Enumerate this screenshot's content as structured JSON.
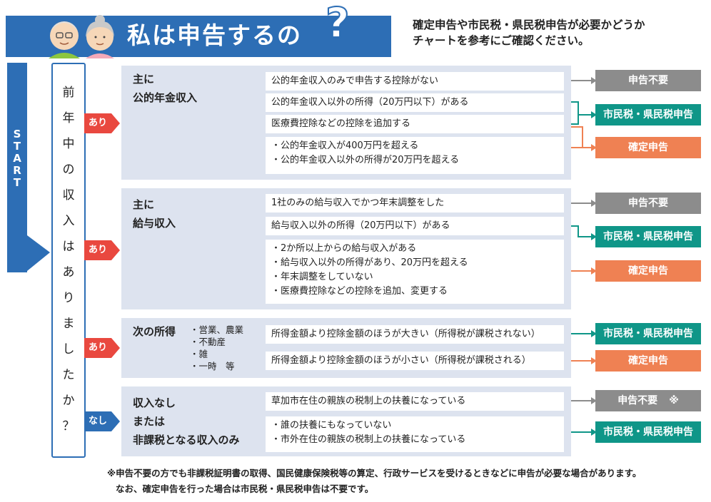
{
  "header": {
    "title": "私は申告するの",
    "title_mark": "?",
    "note_line1": "確定申告や市民税・県民税申告が必要かどうか",
    "note_line2": "チャートを参考にご確認ください。"
  },
  "start_label": [
    "S",
    "T",
    "A",
    "R",
    "T"
  ],
  "question_chars": [
    "前",
    "年",
    "中",
    "の",
    "収",
    "入",
    "は",
    "あ",
    "り",
    "ま",
    "し",
    "た",
    "か",
    "？"
  ],
  "tags": {
    "yes": "あり",
    "no": "なし"
  },
  "results": {
    "not_required": "申告不要",
    "resident_tax": "市民税・県民税申告",
    "final_return": "確定申告",
    "asterisk": "※"
  },
  "panel_pension": {
    "cat_line1": "主に",
    "cat_line2": "公的年金収入",
    "row1": "公的年金収入のみで申告する控除がない",
    "row2": "公的年金収入以外の所得（20万円以下）がある",
    "row3": "医療費控除などの控除を追加する",
    "row4_line1": "・公的年金収入が400万円を超える",
    "row4_line2": "・公的年金収入以外の所得が20万円を超える"
  },
  "panel_salary": {
    "cat_line1": "主に",
    "cat_line2": "給与収入",
    "row1": "1社のみの給与収入でかつ年末調整をした",
    "row2": "給与収入以外の所得（20万円以下）がある",
    "row3_line1": "・2か所以上からの給与収入がある",
    "row3_line2": "・給与収入以外の所得があり、20万円を超える",
    "row3_line3": "・年末調整をしていない",
    "row3_line4": "・医療費控除などの控除を追加、変更する"
  },
  "panel_other": {
    "cat": "次の所得",
    "list": [
      "・営業、農業",
      "・不動産",
      "・雑",
      "・一時　等"
    ],
    "row1": "所得金額より控除金額のほうが大きい（所得税が課税されない）",
    "row2": "所得金額より控除金額のほうが小さい（所得税が課税される）"
  },
  "panel_none": {
    "cat_line1": "収入なし",
    "cat_line2": "または",
    "cat_line3": "非課税となる収入のみ",
    "row1": "草加市在住の親族の税制上の扶養になっている",
    "row2_line1": "・誰の扶養にもなっていない",
    "row2_line2": "・市外在住の親族の税制上の扶養になっている"
  },
  "footnote": {
    "line1": "※申告不要の方でも非課税証明書の取得、国民健康保険税等の算定、行政サービスを受けるときなどに申告が必要な場合があります。",
    "line2": "なお、確定申告を行った場合は市民税・県民税申告は不要です。"
  },
  "colors": {
    "brand_blue": "#2d6eb5",
    "panel_bg": "#dde3ef",
    "gray": "#8c8c8c",
    "teal": "#0f9688",
    "orange": "#ef8153",
    "tag_red": "#e9483f"
  }
}
